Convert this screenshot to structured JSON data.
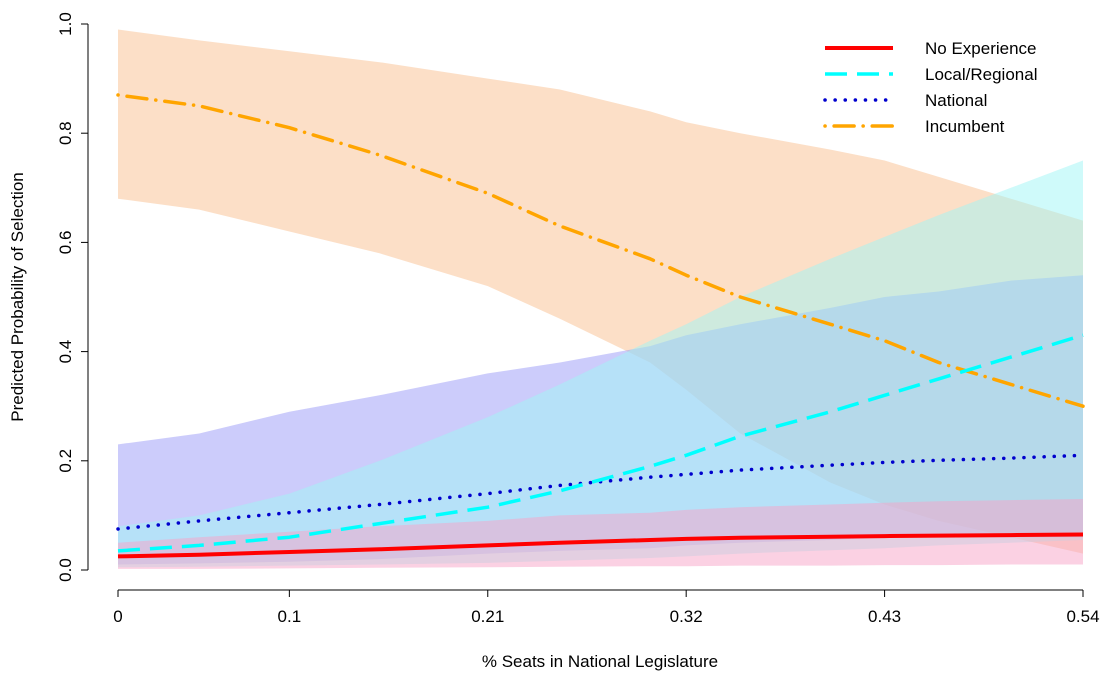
{
  "chart_data": {
    "type": "line",
    "title": "",
    "xlabel": "% Seats in National Legislature",
    "ylabel": "Predicted Probability of Selection",
    "xlim": [
      0.005,
      0.54
    ],
    "ylim": [
      0,
      1
    ],
    "x_ticks": [
      {
        "value": 0.005,
        "label": "0"
      },
      {
        "value": 0.1,
        "label": "0.1"
      },
      {
        "value": 0.21,
        "label": "0.21"
      },
      {
        "value": 0.32,
        "label": "0.32"
      },
      {
        "value": 0.43,
        "label": "0.43"
      },
      {
        "value": 0.54,
        "label": "0.54"
      }
    ],
    "y_ticks": [
      {
        "value": 0.0,
        "label": "0.0"
      },
      {
        "value": 0.2,
        "label": "0.2"
      },
      {
        "value": 0.4,
        "label": "0.4"
      },
      {
        "value": 0.6,
        "label": "0.6"
      },
      {
        "value": 0.8,
        "label": "0.8"
      },
      {
        "value": 1.0,
        "label": "1.0"
      }
    ],
    "grid": false,
    "legend_position": "top-right",
    "x": [
      0.005,
      0.05,
      0.1,
      0.15,
      0.21,
      0.25,
      0.3,
      0.32,
      0.35,
      0.4,
      0.43,
      0.46,
      0.5,
      0.54
    ],
    "series": [
      {
        "name": "Incumbent",
        "color": "#FFA500",
        "band_color": "#FAC090",
        "line_style": "dotdash",
        "values": [
          0.87,
          0.85,
          0.81,
          0.76,
          0.69,
          0.63,
          0.57,
          0.54,
          0.5,
          0.45,
          0.42,
          0.38,
          0.34,
          0.3
        ],
        "lower": [
          0.68,
          0.66,
          0.62,
          0.58,
          0.52,
          0.46,
          0.38,
          0.33,
          0.25,
          0.16,
          0.12,
          0.09,
          0.06,
          0.03
        ],
        "upper": [
          0.99,
          0.97,
          0.95,
          0.93,
          0.9,
          0.88,
          0.84,
          0.82,
          0.8,
          0.77,
          0.75,
          0.72,
          0.68,
          0.64
        ]
      },
      {
        "name": "National",
        "color": "#0000CD",
        "band_color": "#9A9AF8",
        "line_style": "dotted",
        "values": [
          0.075,
          0.09,
          0.105,
          0.12,
          0.14,
          0.155,
          0.17,
          0.175,
          0.183,
          0.192,
          0.197,
          0.201,
          0.205,
          0.21
        ],
        "lower": [
          0.01,
          0.012,
          0.015,
          0.02,
          0.03,
          0.035,
          0.04,
          0.045,
          0.05,
          0.055,
          0.06,
          0.06,
          0.06,
          0.06
        ],
        "upper": [
          0.23,
          0.25,
          0.29,
          0.32,
          0.36,
          0.38,
          0.41,
          0.43,
          0.45,
          0.48,
          0.5,
          0.51,
          0.53,
          0.54
        ]
      },
      {
        "name": "Local/Regional",
        "color": "#00FFFF",
        "band_color": "#A0F5F5",
        "line_style": "dashed",
        "values": [
          0.035,
          0.045,
          0.06,
          0.085,
          0.115,
          0.145,
          0.19,
          0.21,
          0.245,
          0.29,
          0.32,
          0.35,
          0.39,
          0.43
        ],
        "lower": [
          0.005,
          0.006,
          0.008,
          0.01,
          0.013,
          0.017,
          0.022,
          0.025,
          0.03,
          0.036,
          0.04,
          0.045,
          0.05,
          0.055
        ],
        "upper": [
          0.08,
          0.1,
          0.14,
          0.2,
          0.28,
          0.34,
          0.42,
          0.45,
          0.5,
          0.57,
          0.61,
          0.65,
          0.7,
          0.75
        ]
      },
      {
        "name": "No Experience",
        "color": "#FF0000",
        "band_color": "#F7A3C8",
        "line_style": "solid",
        "values": [
          0.025,
          0.028,
          0.033,
          0.038,
          0.045,
          0.05,
          0.055,
          0.057,
          0.059,
          0.061,
          0.062,
          0.063,
          0.064,
          0.065
        ],
        "lower": [
          0.002,
          0.002,
          0.003,
          0.004,
          0.005,
          0.006,
          0.007,
          0.007,
          0.008,
          0.008,
          0.009,
          0.009,
          0.01,
          0.01
        ],
        "upper": [
          0.05,
          0.06,
          0.07,
          0.08,
          0.09,
          0.1,
          0.105,
          0.11,
          0.115,
          0.12,
          0.123,
          0.126,
          0.128,
          0.13
        ]
      }
    ],
    "legend_order": [
      "No Experience",
      "Local/Regional",
      "National",
      "Incumbent"
    ]
  }
}
